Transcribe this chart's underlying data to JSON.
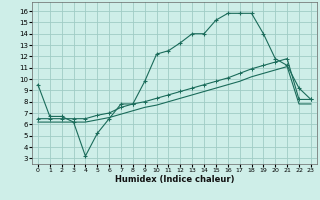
{
  "title": "",
  "xlabel": "Humidex (Indice chaleur)",
  "bg_color": "#ceeee8",
  "grid_color": "#a0ccc5",
  "line_color": "#1a6b5a",
  "xlim": [
    -0.5,
    23.5
  ],
  "ylim": [
    2.5,
    16.8
  ],
  "yticks": [
    3,
    4,
    5,
    6,
    7,
    8,
    9,
    10,
    11,
    12,
    13,
    14,
    15,
    16
  ],
  "xticks": [
    0,
    1,
    2,
    3,
    4,
    5,
    6,
    7,
    8,
    9,
    10,
    11,
    12,
    13,
    14,
    15,
    16,
    17,
    18,
    19,
    20,
    21,
    22,
    23
  ],
  "line1_x": [
    0,
    1,
    2,
    3,
    4,
    5,
    6,
    7,
    8,
    9,
    10,
    11,
    12,
    13,
    14,
    15,
    16,
    17,
    18,
    19,
    20,
    21,
    22,
    23
  ],
  "line1_y": [
    9.5,
    6.7,
    6.7,
    6.2,
    3.2,
    5.2,
    6.5,
    7.8,
    7.8,
    9.8,
    12.2,
    12.5,
    13.2,
    14.0,
    14.0,
    15.2,
    15.8,
    15.8,
    15.8,
    14.0,
    11.8,
    11.2,
    9.2,
    8.2
  ],
  "line2_x": [
    0,
    1,
    2,
    3,
    4,
    5,
    6,
    7,
    8,
    9,
    10,
    11,
    12,
    13,
    14,
    15,
    16,
    17,
    18,
    19,
    20,
    21,
    22,
    23
  ],
  "line2_y": [
    6.5,
    6.5,
    6.5,
    6.5,
    6.5,
    6.8,
    7.0,
    7.5,
    7.8,
    8.0,
    8.3,
    8.6,
    8.9,
    9.2,
    9.5,
    9.8,
    10.1,
    10.5,
    10.9,
    11.2,
    11.5,
    11.8,
    8.2,
    8.2
  ],
  "line3_x": [
    0,
    1,
    2,
    3,
    4,
    5,
    6,
    7,
    8,
    9,
    10,
    11,
    12,
    13,
    14,
    15,
    16,
    17,
    18,
    19,
    20,
    21,
    22,
    23
  ],
  "line3_y": [
    6.2,
    6.2,
    6.2,
    6.2,
    6.2,
    6.4,
    6.6,
    6.9,
    7.2,
    7.5,
    7.7,
    8.0,
    8.3,
    8.6,
    8.9,
    9.2,
    9.5,
    9.8,
    10.2,
    10.5,
    10.8,
    11.1,
    7.8,
    7.8
  ]
}
